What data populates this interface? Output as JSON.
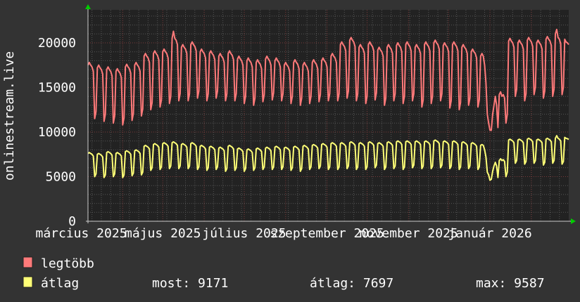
{
  "chart_data": {
    "type": "line",
    "title": "",
    "ylabel": "onlinestream.live",
    "xlabel": "",
    "x_range": [
      "2025-03-06",
      "2026-03-01"
    ],
    "ylim": [
      0,
      23700
    ],
    "grid": true,
    "y_ticks": [
      "0",
      "5000",
      "10000",
      "15000",
      "20000"
    ],
    "x_tick_labels": [
      {
        "date": "2025-03-01",
        "label": "március 2025"
      },
      {
        "date": "2025-05-01",
        "label": "május 2025"
      },
      {
        "date": "2025-07-01",
        "label": "július 2025"
      },
      {
        "date": "2025-09-01",
        "label": "szeptember 2025"
      },
      {
        "date": "2025-11-01",
        "label": "november 2025"
      },
      {
        "date": "2026-01-01",
        "label": "január 2026"
      }
    ],
    "colors": {
      "background": "#333333",
      "plot_background": "#222222",
      "text": "#ffffff",
      "axis_arrow": "#00cc00",
      "major_grid": "#7a3a3a",
      "minor_grid": "#555555"
    },
    "series": [
      {
        "name": "legtöbb",
        "color": "#ff7a7a",
        "values": [
          17500,
          17800,
          17500,
          17300,
          16800,
          11500,
          12300,
          17200,
          17500,
          17200,
          17000,
          16500,
          11200,
          12000,
          17000,
          17300,
          17000,
          16800,
          16300,
          11000,
          11800,
          16800,
          17100,
          16800,
          16600,
          16100,
          10800,
          11600,
          17300,
          17600,
          17300,
          17100,
          16600,
          11300,
          12100,
          17500,
          17800,
          17500,
          17300,
          16800,
          11800,
          12600,
          18500,
          18800,
          18500,
          18300,
          17800,
          12500,
          13300,
          18800,
          19100,
          18800,
          18600,
          18100,
          12800,
          13600,
          19000,
          19300,
          19000,
          18800,
          18300,
          13200,
          14000,
          20500,
          21300,
          20500,
          20300,
          19800,
          13500,
          14300,
          19500,
          19800,
          19500,
          19300,
          18800,
          13500,
          14300,
          19800,
          20100,
          19800,
          19600,
          19100,
          13800,
          14600,
          19000,
          19300,
          19000,
          18800,
          18300,
          13500,
          14300,
          18800,
          19100,
          18800,
          18600,
          18100,
          13800,
          14600,
          18500,
          18800,
          18500,
          18300,
          17800,
          13500,
          14300,
          18800,
          19100,
          18800,
          18600,
          18100,
          13500,
          14300,
          18200,
          18500,
          18200,
          18000,
          17500,
          13200,
          14000,
          18000,
          18300,
          18000,
          17800,
          17300,
          13000,
          13800,
          17800,
          18100,
          17800,
          17600,
          17100,
          13400,
          14200,
          18200,
          18500,
          18200,
          18000,
          17500,
          13600,
          14400,
          18000,
          18300,
          18000,
          17800,
          17300,
          13500,
          14300,
          17500,
          17800,
          17500,
          17300,
          16800,
          13200,
          14000,
          17800,
          18100,
          17800,
          17600,
          17100,
          13000,
          13800,
          17500,
          17800,
          17500,
          17300,
          16800,
          13200,
          14000,
          17800,
          18100,
          17800,
          17600,
          17100,
          13400,
          14200,
          18000,
          18300,
          18000,
          17800,
          17300,
          13500,
          14300,
          18500,
          18800,
          18500,
          18300,
          17800,
          13500,
          14300,
          19800,
          20100,
          19800,
          19600,
          19100,
          13800,
          14600,
          20300,
          20600,
          20300,
          20100,
          19600,
          13500,
          14300,
          19500,
          19800,
          19500,
          19300,
          18800,
          13200,
          14000,
          19800,
          20100,
          19800,
          19600,
          19100,
          13600,
          14400,
          19200,
          19500,
          19200,
          19000,
          18500,
          13000,
          13800,
          19500,
          19800,
          19500,
          19300,
          18800,
          13500,
          14300,
          19700,
          20000,
          19700,
          19500,
          19000,
          13200,
          14000,
          19800,
          20100,
          19800,
          19600,
          19100,
          13500,
          14300,
          19500,
          19800,
          19500,
          19300,
          18800,
          12800,
          13600,
          19800,
          20100,
          19800,
          19600,
          19100,
          13200,
          14000,
          20000,
          20300,
          20000,
          19800,
          19300,
          13500,
          14300,
          19700,
          20000,
          19700,
          19500,
          19000,
          12700,
          13500,
          19800,
          20100,
          19800,
          19600,
          19100,
          12500,
          13300,
          19500,
          19800,
          19500,
          19300,
          18800,
          13000,
          13800,
          19000,
          19300,
          19000,
          18800,
          18300,
          12800,
          13600,
          18500,
          18800,
          18500,
          17500,
          15500,
          12000,
          11000,
          10200,
          10200,
          12000,
          13000,
          14000,
          13000,
          10500,
          14200,
          14500,
          14000,
          14200,
          13800,
          11000,
          12000,
          20200,
          20500,
          20200,
          20000,
          19500,
          14000,
          14800,
          20000,
          20300,
          20000,
          19800,
          19300,
          13500,
          14300,
          20300,
          20600,
          20300,
          20100,
          19600,
          14200,
          15000,
          20000,
          20300,
          20000,
          19800,
          19300,
          13800,
          14600,
          20400,
          20700,
          20400,
          20200,
          19700,
          14000,
          14800,
          21000,
          21500,
          20600,
          20400,
          19900,
          14200,
          15000,
          20400,
          20100,
          20000,
          19800
        ]
      },
      {
        "name": "átlag",
        "color": "#ffff77",
        "values": [
          7600,
          7700,
          7600,
          7500,
          7300,
          5000,
          5300,
          7500,
          7600,
          7500,
          7400,
          7200,
          4900,
          5200,
          7700,
          7800,
          7700,
          7600,
          7400,
          5000,
          5300,
          7600,
          7700,
          7600,
          7500,
          7300,
          4900,
          5200,
          7800,
          7900,
          7800,
          7700,
          7500,
          5100,
          5400,
          7900,
          8000,
          7900,
          7800,
          7600,
          5200,
          5500,
          8400,
          8500,
          8400,
          8300,
          8100,
          5700,
          6000,
          8600,
          8700,
          8600,
          8500,
          8300,
          5800,
          6100,
          8700,
          8800,
          8700,
          8600,
          8400,
          5900,
          6200,
          8800,
          8900,
          8800,
          8700,
          8500,
          5900,
          6200,
          8600,
          8700,
          8600,
          8500,
          8300,
          5900,
          6200,
          8700,
          8800,
          8700,
          8600,
          8400,
          5800,
          6100,
          8400,
          8500,
          8400,
          8300,
          8100,
          5700,
          6000,
          8300,
          8400,
          8300,
          8200,
          8000,
          5800,
          6100,
          8200,
          8300,
          8200,
          8100,
          7900,
          5600,
          5900,
          8400,
          8500,
          8400,
          8300,
          8100,
          5700,
          6000,
          8100,
          8200,
          8100,
          8000,
          7800,
          5600,
          5900,
          8000,
          8100,
          8000,
          7900,
          7700,
          5700,
          6000,
          8100,
          8200,
          8100,
          8000,
          7800,
          5800,
          6100,
          8200,
          8300,
          8200,
          8100,
          7900,
          5800,
          6100,
          8300,
          8400,
          8300,
          8200,
          8000,
          5800,
          6100,
          8200,
          8300,
          8200,
          8100,
          7900,
          5700,
          6000,
          8300,
          8400,
          8300,
          8200,
          8000,
          5600,
          5900,
          8400,
          8500,
          8400,
          8300,
          8100,
          5800,
          6100,
          8500,
          8600,
          8500,
          8400,
          8200,
          5900,
          6200,
          8600,
          8700,
          8600,
          8500,
          8300,
          5800,
          6100,
          8700,
          8800,
          8700,
          8600,
          8400,
          5800,
          6100,
          8700,
          8800,
          8700,
          8600,
          8400,
          5900,
          6200,
          8800,
          8900,
          8800,
          8700,
          8500,
          5800,
          6100,
          8700,
          8800,
          8700,
          8600,
          8400,
          5800,
          6100,
          8800,
          8900,
          8800,
          8700,
          8500,
          6000,
          6300,
          8700,
          8800,
          8700,
          8600,
          8400,
          5800,
          6100,
          8800,
          8900,
          8800,
          8700,
          8500,
          5900,
          6200,
          8900,
          9000,
          8900,
          8800,
          8600,
          5800,
          6100,
          8900,
          9000,
          8900,
          8800,
          8600,
          6000,
          6300,
          8900,
          9000,
          8900,
          8800,
          8600,
          5900,
          6200,
          8900,
          9000,
          8900,
          8800,
          8600,
          5900,
          6200,
          9000,
          9100,
          9000,
          8900,
          8700,
          6000,
          6300,
          8900,
          9000,
          8900,
          8800,
          8600,
          5900,
          6200,
          8900,
          9000,
          8900,
          8800,
          8600,
          5800,
          6100,
          8800,
          8900,
          8800,
          8700,
          8500,
          5900,
          6200,
          8700,
          8800,
          8700,
          8600,
          8400,
          5800,
          6100,
          8500,
          8600,
          8500,
          8000,
          7200,
          5500,
          5200,
          4600,
          4700,
          5600,
          6200,
          6600,
          6200,
          4900,
          6800,
          7000,
          6800,
          6900,
          6700,
          5000,
          5500,
          9100,
          9200,
          9100,
          9000,
          8800,
          6500,
          6800,
          9100,
          9200,
          9100,
          9000,
          8800,
          6400,
          6700,
          9200,
          9300,
          9200,
          9100,
          8900,
          6500,
          6800,
          9100,
          9200,
          9100,
          9000,
          8800,
          6300,
          6600,
          9200,
          9300,
          9200,
          9100,
          8900,
          6500,
          6800,
          9300,
          9587,
          9300,
          9200,
          9000,
          6400,
          6700,
          9400,
          9300,
          9250,
          9171
        ]
      }
    ],
    "legend": {
      "placement": "bottom-left",
      "items": [
        {
          "label": "legtöbb",
          "color": "#ff7a7a"
        },
        {
          "label": "átlag",
          "color": "#ffff77"
        }
      ],
      "stats": {
        "now": "most: 9171",
        "avg": "átlag: 7697",
        "max": "max: 9587"
      }
    }
  }
}
